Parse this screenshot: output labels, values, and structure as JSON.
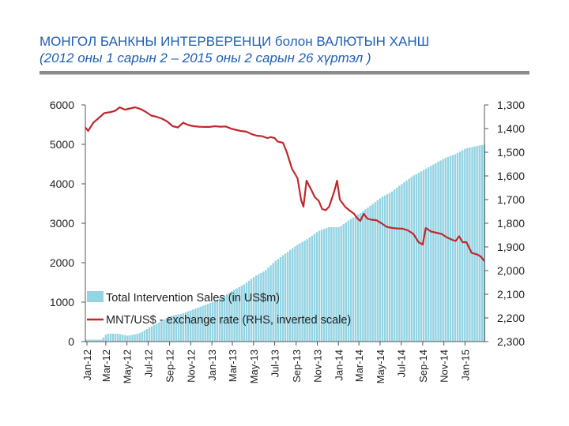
{
  "slide": {
    "title_main": "МОНГОЛ БАНКНЫ ИНТЕРВЕРЕНЦИ болон ВАЛЮТЫН ХАНШ",
    "title_sub": "(2012 оны 1 сарын 2 – 2015 оны 2 сарын 26 хүртэл )"
  },
  "colors": {
    "title": "#1f5fb4",
    "bars": "#93d3e2",
    "line": "#c0282d",
    "axis": "#555555"
  },
  "chart_data": {
    "type": "bar",
    "grid": false,
    "legend_position": "lower-left",
    "left_axis": {
      "ylim": [
        0,
        6000
      ],
      "ticks": [
        "0",
        "1000",
        "2000",
        "3000",
        "4000",
        "5000",
        "6000"
      ]
    },
    "right_axis": {
      "inverted": true,
      "ylim": [
        1300,
        2300
      ],
      "ticks": [
        "1,300",
        "1,400",
        "1,500",
        "1,600",
        "1,700",
        "1,800",
        "1,900",
        "2,000",
        "2,100",
        "2,200",
        "2,300"
      ]
    },
    "x_range": [
      "2012-01-02",
      "2015-02-26"
    ],
    "x_ticks": [
      "Jan-12",
      "Mar-12",
      "May-12",
      "Jul-12",
      "Sep-12",
      "Nov-12",
      "Jan-13",
      "Mar-13",
      "May-13",
      "Jul-13",
      "Sep-13",
      "Nov-13",
      "Jan-14",
      "Mar-14",
      "May-14",
      "Jul-14",
      "Sep-14",
      "Nov-14",
      "Jan-15"
    ],
    "series": [
      {
        "name": "Total Intervention Sales (in US$m)",
        "kind": "bar",
        "axis": "left",
        "x": [
          "2012-01-02",
          "2012-02-15",
          "2012-03-01",
          "2012-04-01",
          "2012-05-01",
          "2012-06-01",
          "2012-07-01",
          "2012-08-01",
          "2012-09-01",
          "2012-10-01",
          "2012-11-01",
          "2012-12-01",
          "2013-01-01",
          "2013-02-01",
          "2013-03-01",
          "2013-04-01",
          "2013-05-01",
          "2013-06-01",
          "2013-07-01",
          "2013-08-01",
          "2013-09-01",
          "2013-10-01",
          "2013-11-01",
          "2013-12-01",
          "2014-01-01",
          "2014-02-01",
          "2014-03-01",
          "2014-04-01",
          "2014-05-01",
          "2014-06-01",
          "2014-07-01",
          "2014-08-01",
          "2014-09-01",
          "2014-10-01",
          "2014-11-01",
          "2014-12-01",
          "2015-01-01",
          "2015-02-26"
        ],
        "values": [
          50,
          50,
          200,
          200,
          150,
          200,
          350,
          500,
          650,
          700,
          800,
          900,
          1000,
          1150,
          1300,
          1450,
          1650,
          1800,
          2050,
          2250,
          2450,
          2600,
          2800,
          2900,
          2900,
          3100,
          3250,
          3450,
          3650,
          3800,
          4000,
          4200,
          4350,
          4500,
          4650,
          4750,
          4900,
          5000
        ]
      },
      {
        "name": "MNT/US$ - exchange rate (RHS, inverted scale)",
        "kind": "line",
        "axis": "right",
        "x": [
          "2012-01-02",
          "2012-01-10",
          "2012-01-25",
          "2012-02-10",
          "2012-02-25",
          "2012-03-15",
          "2012-03-28",
          "2012-04-10",
          "2012-04-25",
          "2012-05-10",
          "2012-05-25",
          "2012-06-10",
          "2012-06-25",
          "2012-07-10",
          "2012-07-25",
          "2012-08-10",
          "2012-08-25",
          "2012-09-10",
          "2012-09-25",
          "2012-10-10",
          "2012-10-25",
          "2012-11-10",
          "2012-11-25",
          "2012-12-10",
          "2012-12-25",
          "2013-01-10",
          "2013-01-25",
          "2013-02-10",
          "2013-02-25",
          "2013-03-10",
          "2013-03-25",
          "2013-04-10",
          "2013-04-25",
          "2013-05-10",
          "2013-05-25",
          "2013-06-10",
          "2013-06-20",
          "2013-07-01",
          "2013-07-10",
          "2013-07-25",
          "2013-08-05",
          "2013-08-20",
          "2013-09-05",
          "2013-09-15",
          "2013-09-22",
          "2013-10-01",
          "2013-10-15",
          "2013-10-25",
          "2013-11-05",
          "2013-11-15",
          "2013-11-25",
          "2013-12-05",
          "2013-12-20",
          "2013-12-28",
          "2014-01-05",
          "2014-01-20",
          "2014-02-01",
          "2014-02-15",
          "2014-02-25",
          "2014-03-05",
          "2014-03-15",
          "2014-03-25",
          "2014-04-05",
          "2014-04-20",
          "2014-05-05",
          "2014-05-20",
          "2014-06-05",
          "2014-06-20",
          "2014-07-05",
          "2014-07-20",
          "2014-08-05",
          "2014-08-20",
          "2014-09-01",
          "2014-09-10",
          "2014-09-25",
          "2014-10-10",
          "2014-10-25",
          "2014-11-10",
          "2014-11-25",
          "2014-12-05",
          "2014-12-15",
          "2014-12-25",
          "2015-01-05",
          "2015-01-20",
          "2015-02-05",
          "2015-02-15",
          "2015-02-26"
        ],
        "values": [
          1395,
          1410,
          1375,
          1355,
          1335,
          1330,
          1325,
          1310,
          1320,
          1315,
          1310,
          1318,
          1330,
          1345,
          1350,
          1358,
          1370,
          1390,
          1395,
          1375,
          1385,
          1390,
          1392,
          1393,
          1393,
          1390,
          1392,
          1391,
          1400,
          1405,
          1410,
          1413,
          1423,
          1430,
          1432,
          1440,
          1436,
          1440,
          1455,
          1460,
          1500,
          1570,
          1610,
          1700,
          1730,
          1620,
          1660,
          1690,
          1705,
          1740,
          1745,
          1730,
          1665,
          1620,
          1700,
          1730,
          1745,
          1760,
          1780,
          1790,
          1760,
          1780,
          1785,
          1787,
          1800,
          1815,
          1820,
          1822,
          1823,
          1830,
          1845,
          1880,
          1890,
          1820,
          1835,
          1840,
          1845,
          1860,
          1870,
          1875,
          1855,
          1880,
          1880,
          1925,
          1932,
          1940,
          1960
        ]
      }
    ]
  }
}
